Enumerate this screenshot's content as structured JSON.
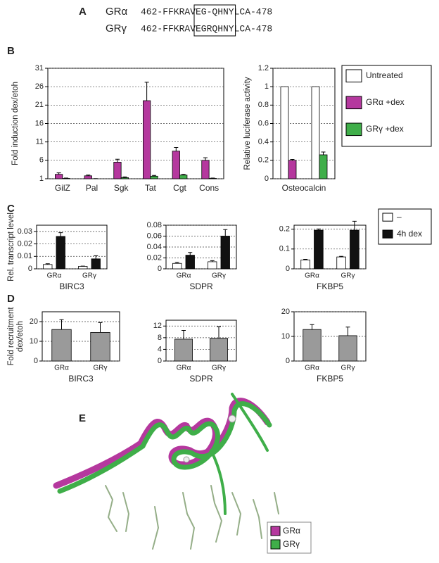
{
  "panel_a": {
    "label": "A",
    "rows": [
      {
        "name": "GRα",
        "pre": "462-FFKRAV",
        "boxed": "EG-QHNY",
        "post": "LCA-478"
      },
      {
        "name": "GRγ",
        "pre": "462-FFKRAV",
        "boxed": "EGRQHNY",
        "post": "LCA-478"
      }
    ]
  },
  "panel_labels": [
    "B",
    "C",
    "D"
  ],
  "chart_data": [
    {
      "type": "bar",
      "ylabel": "Fold induction dex/etoh",
      "categories": [
        "GilZ",
        "Pal",
        "Sgk",
        "Tat",
        "Cgt",
        "Cons"
      ],
      "series": [
        {
          "color": "#b5389e",
          "values": [
            2.2,
            1.8,
            5.5,
            22.2,
            8.5,
            6.0
          ],
          "errors": [
            0.4,
            0.2,
            0.8,
            5.0,
            1.0,
            0.7
          ]
        },
        {
          "color": "#3fae49",
          "values": [
            1.1,
            1.0,
            1.3,
            1.7,
            2.0,
            1.1
          ],
          "errors": [
            0.1,
            0.05,
            0.2,
            0.2,
            0.2,
            0.1
          ]
        }
      ],
      "ylim": [
        1,
        31
      ],
      "yticks": [
        1,
        6,
        11,
        16,
        21,
        26,
        31
      ],
      "grid": true
    },
    {
      "type": "bar",
      "ylabel": "Relative luciferase activity",
      "xlabel": "Osteocalcin",
      "categories": [
        null,
        null
      ],
      "series": [
        {
          "name": "Untreated",
          "color": "#ffffff",
          "values": [
            1,
            1
          ],
          "errors": [
            null,
            null
          ]
        },
        {
          "name": "GRα +dex",
          "color": "#b5389e",
          "values": [
            0.2,
            null
          ],
          "errors": [
            0.01,
            null
          ]
        },
        {
          "name": "GRγ +dex",
          "color": "#3fae49",
          "values": [
            null,
            0.26
          ],
          "errors": [
            null,
            0.03
          ]
        }
      ],
      "ylim": [
        0,
        1.2
      ],
      "yticks": [
        0,
        0.2,
        0.4,
        0.6,
        0.8,
        1,
        1.2
      ],
      "grid": true,
      "legend": "right"
    },
    {
      "type": "bar",
      "ylabel": "Rel. transcript level",
      "xlabel": "BIRC3",
      "categories": [
        "GRα",
        "GRγ"
      ],
      "series": [
        {
          "color": "#ffffff",
          "values": [
            0.0035,
            0.002
          ],
          "errors": [
            0.0006,
            0.0002
          ]
        },
        {
          "color": "#111111",
          "values": [
            0.026,
            0.008
          ],
          "errors": [
            0.003,
            0.0025
          ]
        }
      ],
      "ylim": [
        0,
        0.035
      ],
      "yticks": [
        0,
        0.01,
        0.02,
        0.03
      ],
      "grid": true
    },
    {
      "type": "bar",
      "xlabel": "SDPR",
      "categories": [
        "GRα",
        "GRγ"
      ],
      "series": [
        {
          "color": "#ffffff",
          "values": [
            0.01,
            0.013
          ],
          "errors": [
            0.002,
            0.002
          ]
        },
        {
          "color": "#111111",
          "values": [
            0.025,
            0.06
          ],
          "errors": [
            0.005,
            0.012
          ]
        }
      ],
      "ylim": [
        0,
        0.08
      ],
      "yticks": [
        0,
        0.02,
        0.04,
        0.06,
        0.08
      ],
      "grid": true
    },
    {
      "type": "bar",
      "xlabel": "FKBP5",
      "categories": [
        "GRα",
        "GRγ"
      ],
      "series": [
        {
          "name": "–",
          "color": "#ffffff",
          "values": [
            0.045,
            0.06
          ],
          "errors": [
            0.003,
            0.003
          ]
        },
        {
          "name": "4h dex",
          "color": "#111111",
          "values": [
            0.195,
            0.195
          ],
          "errors": [
            0.006,
            0.045
          ]
        }
      ],
      "ylim": [
        0,
        0.22
      ],
      "yticks": [
        0,
        0.1,
        0.2
      ],
      "grid": true,
      "legend": "right"
    },
    {
      "type": "bar",
      "ylabel": [
        "Fold recruitment",
        "dex/etoh"
      ],
      "xlabel": "BIRC3",
      "categories": [
        "GRα",
        "GRγ"
      ],
      "color": "#9a9a9a",
      "values": [
        16,
        14.5
      ],
      "errors": [
        5,
        5
      ],
      "ylim": [
        0,
        25
      ],
      "yticks": [
        0,
        10,
        20
      ],
      "grid": true
    },
    {
      "type": "bar",
      "xlabel": "SDPR",
      "categories": [
        "GRα",
        "GRγ"
      ],
      "color": "#9a9a9a",
      "values": [
        7.5,
        7.8
      ],
      "errors": [
        3,
        4
      ],
      "ylim": [
        0,
        14
      ],
      "yticks": [
        0,
        4,
        8,
        12
      ],
      "grid": true
    },
    {
      "type": "bar",
      "xlabel": "FKBP5",
      "categories": [
        "GRα",
        "GRγ"
      ],
      "color": "#9a9a9a",
      "values": [
        12.8,
        10.3
      ],
      "errors": [
        2,
        3.5
      ],
      "ylim": [
        0,
        20
      ],
      "yticks": [
        0,
        10,
        20
      ],
      "grid": true
    }
  ],
  "panel_e": {
    "label": "E",
    "legend": [
      {
        "name": "GRα",
        "color": "#b5389e"
      },
      {
        "name": "GRγ",
        "color": "#3fae49"
      }
    ]
  }
}
